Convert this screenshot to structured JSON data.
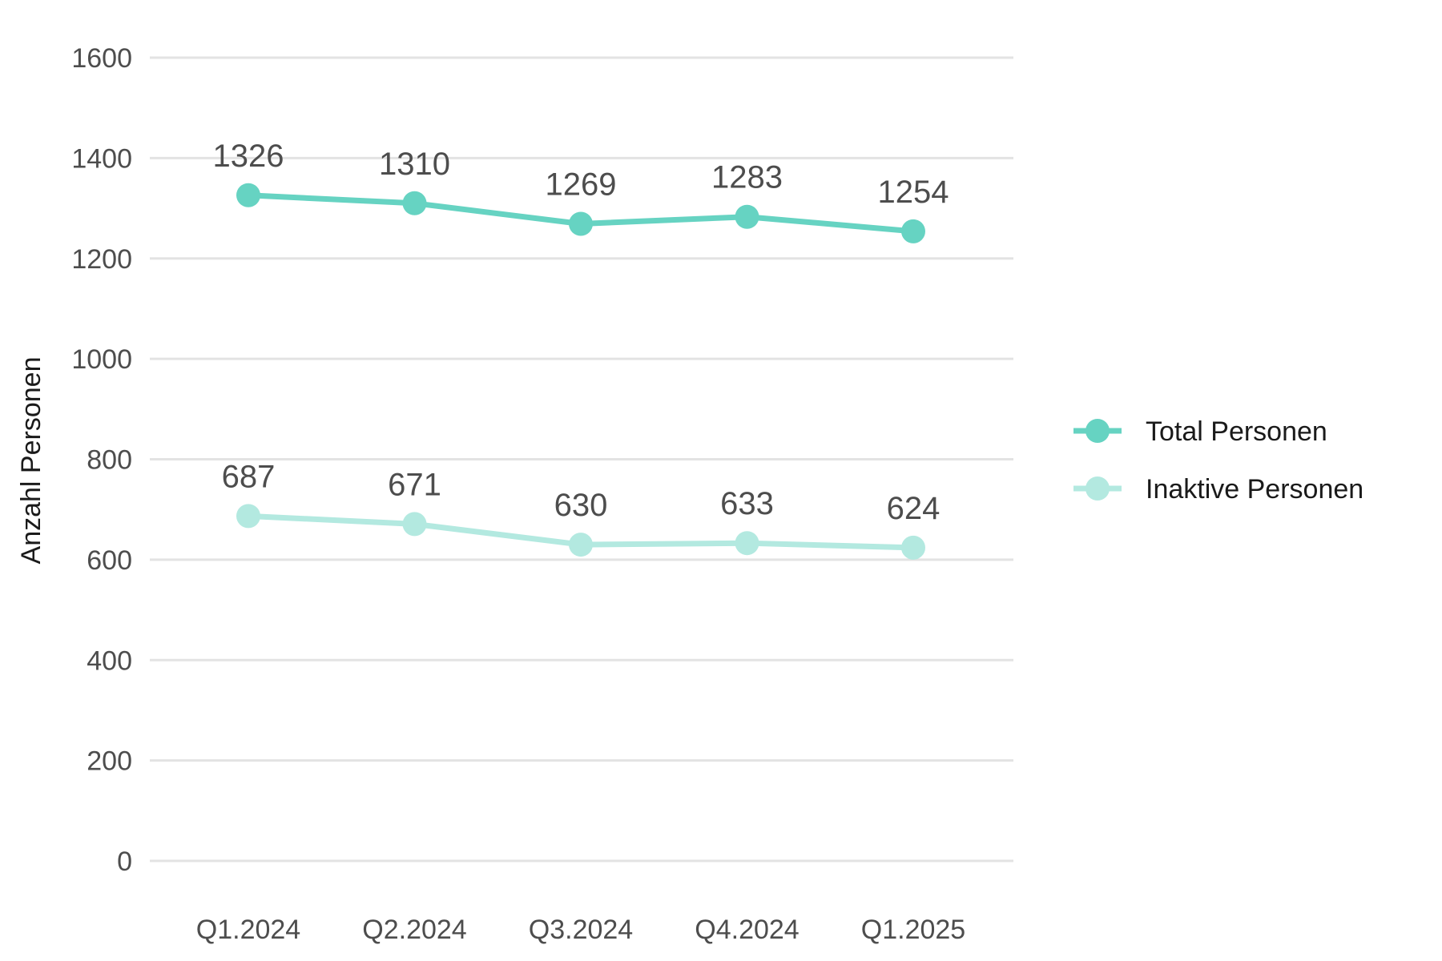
{
  "chart_data": {
    "type": "line",
    "title": "",
    "xlabel": "",
    "ylabel": "Anzahl Personen",
    "categories": [
      "Q1.2024",
      "Q2.2024",
      "Q3.2024",
      "Q4.2024",
      "Q1.2025"
    ],
    "ylim": [
      0,
      1600
    ],
    "yticks": [
      0,
      200,
      400,
      600,
      800,
      1000,
      1200,
      1400,
      1600
    ],
    "grid": true,
    "legend_position": "right",
    "series": [
      {
        "name": "Total Personen",
        "values": [
          1326,
          1310,
          1269,
          1283,
          1254
        ],
        "color": "#66d3c2"
      },
      {
        "name": "Inaktive Personen",
        "values": [
          687,
          671,
          630,
          633,
          624
        ],
        "color": "#b3e9e0"
      }
    ]
  }
}
